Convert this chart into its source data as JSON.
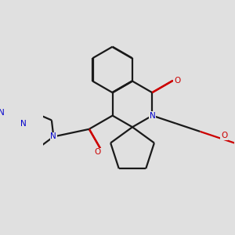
{
  "background_color": "#e0e0e0",
  "bond_color": "#1a1a1a",
  "nitrogen_color": "#0000cc",
  "oxygen_color": "#cc0000",
  "line_width": 1.6,
  "dbl_sep": 0.008,
  "figsize": [
    3.0,
    3.0
  ],
  "dpi": 100,
  "xlim": [
    -2.8,
    3.2
  ],
  "ylim": [
    -2.2,
    2.8
  ]
}
